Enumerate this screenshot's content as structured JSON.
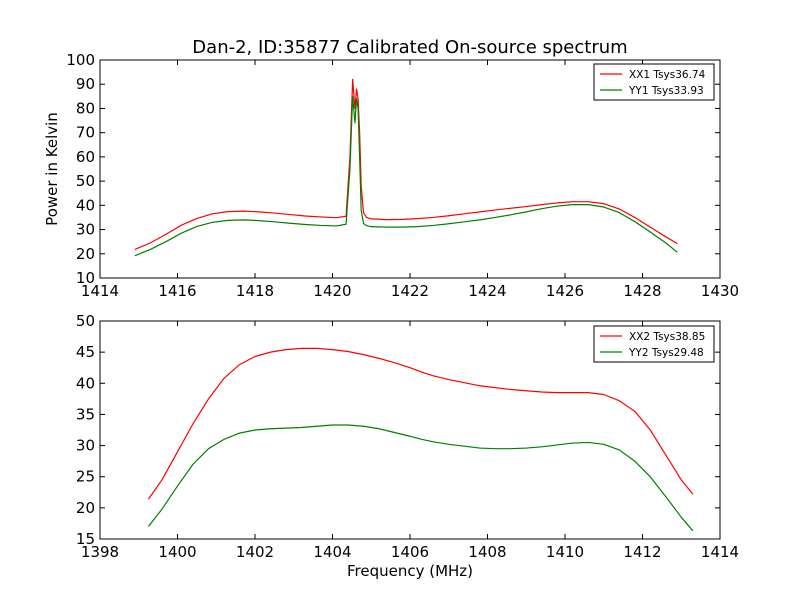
{
  "chart_data": [
    {
      "type": "line",
      "title": "Dan-2, ID:35877 Calibrated On-source spectrum",
      "xlabel": "",
      "ylabel": "Power in Kelvin",
      "xlim": [
        1414,
        1430
      ],
      "ylim": [
        10,
        100
      ],
      "xticks": [
        1414,
        1416,
        1418,
        1420,
        1422,
        1424,
        1426,
        1428,
        1430
      ],
      "yticks": [
        10,
        20,
        30,
        40,
        50,
        60,
        70,
        80,
        90,
        100
      ],
      "grid": false,
      "legend_position": "top-right",
      "series": [
        {
          "name": "XX1 Tsys36.74",
          "color": "#ff0000",
          "x": [
            1414.9,
            1415.3,
            1415.7,
            1416.1,
            1416.5,
            1416.9,
            1417.3,
            1417.7,
            1418.1,
            1418.5,
            1418.9,
            1419.3,
            1419.7,
            1420.1,
            1420.35,
            1420.45,
            1420.52,
            1420.58,
            1420.62,
            1420.66,
            1420.7,
            1420.74,
            1420.8,
            1420.88,
            1421.0,
            1421.4,
            1421.8,
            1422.2,
            1422.6,
            1423.0,
            1423.4,
            1423.8,
            1424.2,
            1424.6,
            1425.0,
            1425.4,
            1425.8,
            1426.2,
            1426.6,
            1427.0,
            1427.4,
            1427.8,
            1428.2,
            1428.6,
            1428.9
          ],
          "y": [
            21.8,
            24.5,
            28.0,
            31.8,
            34.6,
            36.5,
            37.4,
            37.6,
            37.3,
            36.8,
            36.2,
            35.6,
            35.2,
            34.9,
            35.5,
            60,
            92,
            80,
            88,
            84,
            70,
            48,
            37,
            35,
            34.4,
            34.1,
            34.2,
            34.5,
            35.0,
            35.7,
            36.5,
            37.3,
            38.1,
            38.8,
            39.5,
            40.3,
            41.0,
            41.5,
            41.5,
            40.7,
            38.5,
            35.0,
            31.0,
            27.0,
            24.2
          ]
        },
        {
          "name": "YY1 Tsys33.93",
          "color": "#008000",
          "x": [
            1414.9,
            1415.3,
            1415.7,
            1416.1,
            1416.5,
            1416.9,
            1417.3,
            1417.7,
            1418.1,
            1418.5,
            1418.9,
            1419.3,
            1419.7,
            1420.1,
            1420.35,
            1420.45,
            1420.52,
            1420.58,
            1420.62,
            1420.66,
            1420.7,
            1420.74,
            1420.8,
            1420.88,
            1421.0,
            1421.4,
            1421.8,
            1422.2,
            1422.6,
            1423.0,
            1423.4,
            1423.8,
            1424.2,
            1424.6,
            1425.0,
            1425.4,
            1425.8,
            1426.2,
            1426.6,
            1427.0,
            1427.4,
            1427.8,
            1428.2,
            1428.6,
            1428.9
          ],
          "y": [
            19.2,
            21.8,
            25.0,
            28.5,
            31.3,
            33.0,
            33.8,
            34.0,
            33.7,
            33.2,
            32.6,
            32.1,
            31.7,
            31.5,
            32.2,
            55,
            85,
            74,
            84,
            80,
            60,
            38,
            32.5,
            31.6,
            31.2,
            31.0,
            31.0,
            31.2,
            31.7,
            32.4,
            33.2,
            34.0,
            35.0,
            36.1,
            37.3,
            38.6,
            39.7,
            40.3,
            40.3,
            39.3,
            37.0,
            33.3,
            29.0,
            24.5,
            20.6
          ]
        }
      ]
    },
    {
      "type": "line",
      "title": "",
      "xlabel": "Frequency (MHz)",
      "ylabel": "",
      "xlim": [
        1398,
        1414
      ],
      "ylim": [
        15,
        50
      ],
      "xticks": [
        1398,
        1400,
        1402,
        1404,
        1406,
        1408,
        1410,
        1412,
        1414
      ],
      "yticks": [
        15,
        20,
        25,
        30,
        35,
        40,
        45,
        50
      ],
      "grid": false,
      "legend_position": "top-right",
      "series": [
        {
          "name": "XX2 Tsys38.85",
          "color": "#ff0000",
          "x": [
            1399.25,
            1399.6,
            1400.0,
            1400.4,
            1400.8,
            1401.2,
            1401.6,
            1402.0,
            1402.4,
            1402.8,
            1403.2,
            1403.6,
            1404.0,
            1404.4,
            1404.8,
            1405.2,
            1405.6,
            1406.0,
            1406.3,
            1406.6,
            1407.0,
            1407.4,
            1407.8,
            1408.2,
            1408.6,
            1409.0,
            1409.4,
            1409.8,
            1410.2,
            1410.6,
            1411.0,
            1411.4,
            1411.8,
            1412.2,
            1412.6,
            1413.0,
            1413.3
          ],
          "y": [
            21.4,
            24.5,
            29.0,
            33.5,
            37.5,
            40.8,
            43.0,
            44.3,
            45.0,
            45.4,
            45.6,
            45.6,
            45.4,
            45.1,
            44.6,
            44.0,
            43.3,
            42.5,
            41.8,
            41.2,
            40.6,
            40.1,
            39.6,
            39.3,
            39.0,
            38.8,
            38.6,
            38.5,
            38.5,
            38.5,
            38.2,
            37.2,
            35.5,
            32.5,
            28.5,
            24.5,
            22.2
          ]
        },
        {
          "name": "YY2 Tsys29.48",
          "color": "#008000",
          "x": [
            1399.25,
            1399.6,
            1400.0,
            1400.4,
            1400.8,
            1401.2,
            1401.6,
            1402.0,
            1402.4,
            1402.8,
            1403.2,
            1403.6,
            1404.0,
            1404.4,
            1404.8,
            1405.2,
            1405.6,
            1406.0,
            1406.3,
            1406.6,
            1407.0,
            1407.4,
            1407.8,
            1408.2,
            1408.6,
            1409.0,
            1409.4,
            1409.8,
            1410.2,
            1410.6,
            1411.0,
            1411.4,
            1411.8,
            1412.2,
            1412.6,
            1413.0,
            1413.3
          ],
          "y": [
            17.0,
            19.8,
            23.5,
            27.0,
            29.5,
            31.0,
            32.0,
            32.5,
            32.7,
            32.8,
            32.9,
            33.1,
            33.3,
            33.3,
            33.1,
            32.7,
            32.1,
            31.5,
            31.0,
            30.6,
            30.2,
            29.9,
            29.6,
            29.5,
            29.5,
            29.6,
            29.8,
            30.1,
            30.4,
            30.5,
            30.2,
            29.3,
            27.5,
            25.0,
            21.8,
            18.5,
            16.3
          ]
        }
      ]
    }
  ]
}
